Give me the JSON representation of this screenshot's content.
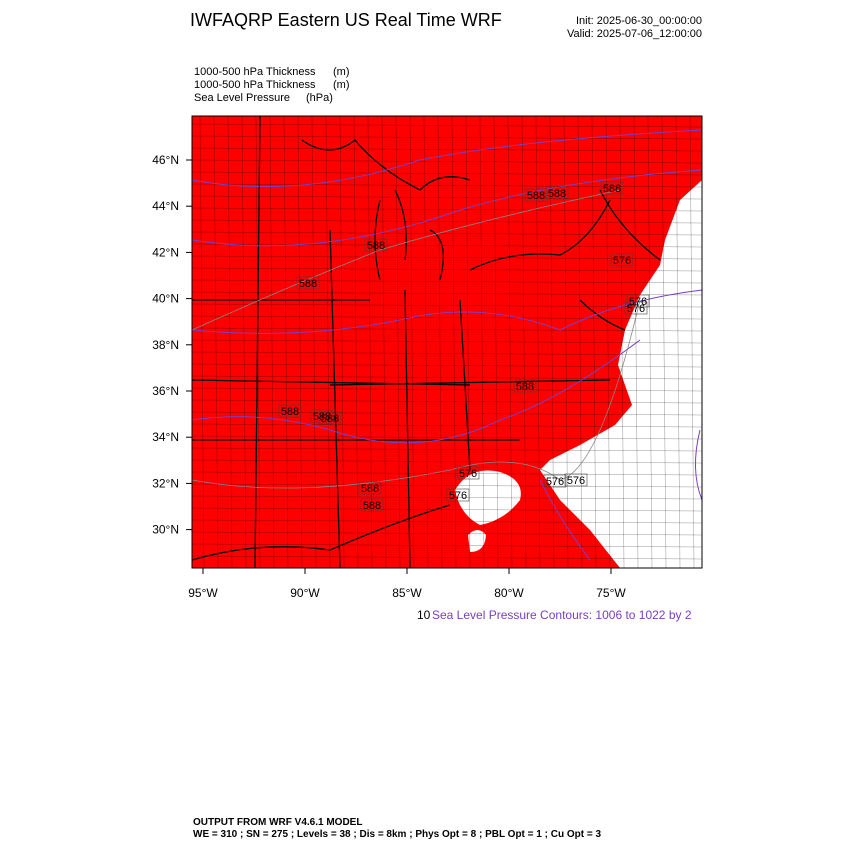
{
  "header": {
    "title": "IWFAQRP Eastern US Real Time WRF",
    "init": "Init: 2025-06-30_00:00:00",
    "valid": "Valid: 2025-07-06_12:00:00"
  },
  "fields": [
    {
      "name": "1000-500 hPa Thickness",
      "units": "(m)"
    },
    {
      "name": "1000-500 hPa Thickness",
      "units": "(m)"
    },
    {
      "name": "Sea Level Pressure",
      "units": "(hPa)"
    }
  ],
  "map": {
    "lat_labels": [
      "46°N",
      "44°N",
      "42°N",
      "40°N",
      "38°N",
      "36°N",
      "34°N",
      "32°N",
      "30°N"
    ],
    "lon_labels": [
      "95°W",
      "90°W",
      "85°W",
      "80°W",
      "75°W"
    ],
    "contour_labels": [
      "588",
      "588",
      "588",
      "588",
      "588",
      "588",
      "588",
      "588",
      "588",
      "576",
      "576",
      "576",
      "576",
      "576",
      "576",
      "576",
      "588",
      "588"
    ]
  },
  "contour_info": {
    "truncated": "10",
    "text": "Sea Level Pressure Contours: 1006 to 1022 by 2"
  },
  "footer": {
    "line1": "OUTPUT FROM WRF V4.6.1 MODEL",
    "line2": "WE = 310 ; SN = 275 ; Levels = 38 ; Dis = 8km ; Phys Opt = 8 ; PBL Opt = 1 ; Cu Opt = 3"
  }
}
